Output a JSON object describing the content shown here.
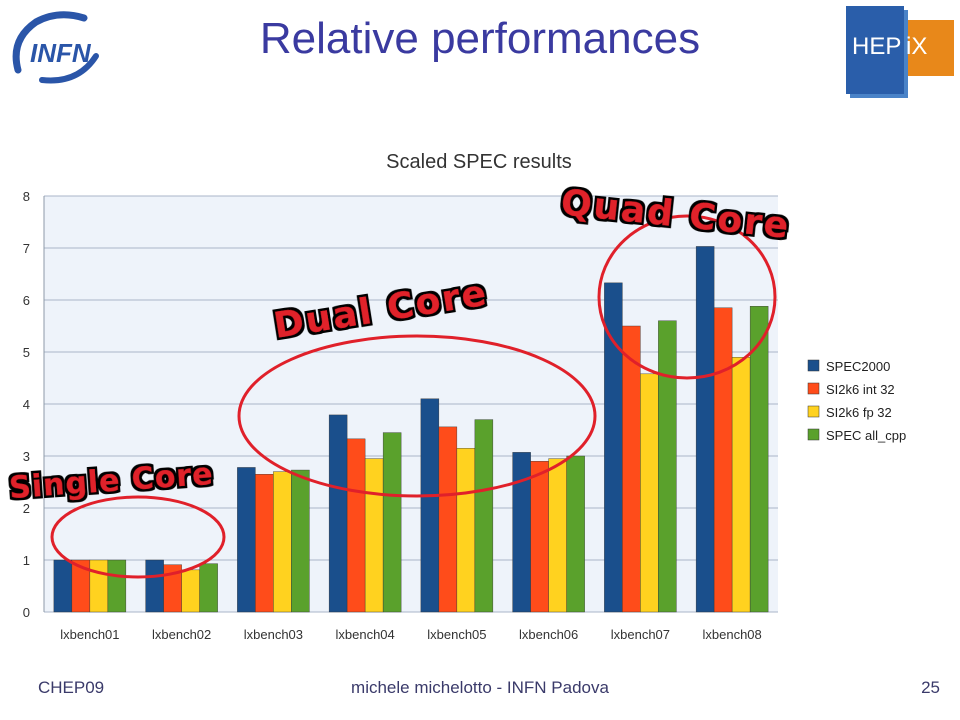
{
  "slide": {
    "title": "Relative performances",
    "footer_left": "CHEP09",
    "footer_center": "michele michelotto - INFN Padova",
    "page_number": "25"
  },
  "logos": {
    "infn": "INFN",
    "hepix_a": "HEP",
    "hepix_b": "iX"
  },
  "annotations": {
    "single": "Single Core",
    "dual": "Dual Core",
    "quad": "Quad Core"
  },
  "colors": {
    "title": "#3a3aa0",
    "annotation_circle": "#e0202a",
    "series": [
      "#1a4f8c",
      "#ff4c1a",
      "#ffd21f",
      "#5aa12c"
    ]
  },
  "chart_data": {
    "type": "bar",
    "title": "Scaled SPEC results",
    "xlabel": "",
    "ylabel": "",
    "ylim": [
      0,
      8
    ],
    "yticks": [
      0,
      1,
      2,
      3,
      4,
      5,
      6,
      7,
      8
    ],
    "grid": true,
    "legend_position": "right",
    "categories": [
      "lxbench01",
      "lxbench02",
      "lxbench03",
      "lxbench04",
      "lxbench05",
      "lxbench06",
      "lxbench07",
      "lxbench08"
    ],
    "series": [
      {
        "name": "SPEC2000",
        "values": [
          1.0,
          1.0,
          2.78,
          3.79,
          4.1,
          3.07,
          6.33,
          7.03
        ]
      },
      {
        "name": "SI2k6 int 32",
        "values": [
          1.0,
          0.91,
          2.65,
          3.33,
          3.56,
          2.9,
          5.5,
          5.85
        ]
      },
      {
        "name": "SI2k6 fp 32",
        "values": [
          1.0,
          0.81,
          2.7,
          2.95,
          3.15,
          2.95,
          4.58,
          4.9
        ]
      },
      {
        "name": "SPEC all_cpp",
        "values": [
          1.0,
          0.93,
          2.73,
          3.45,
          3.7,
          3.0,
          5.6,
          5.88
        ]
      }
    ]
  }
}
